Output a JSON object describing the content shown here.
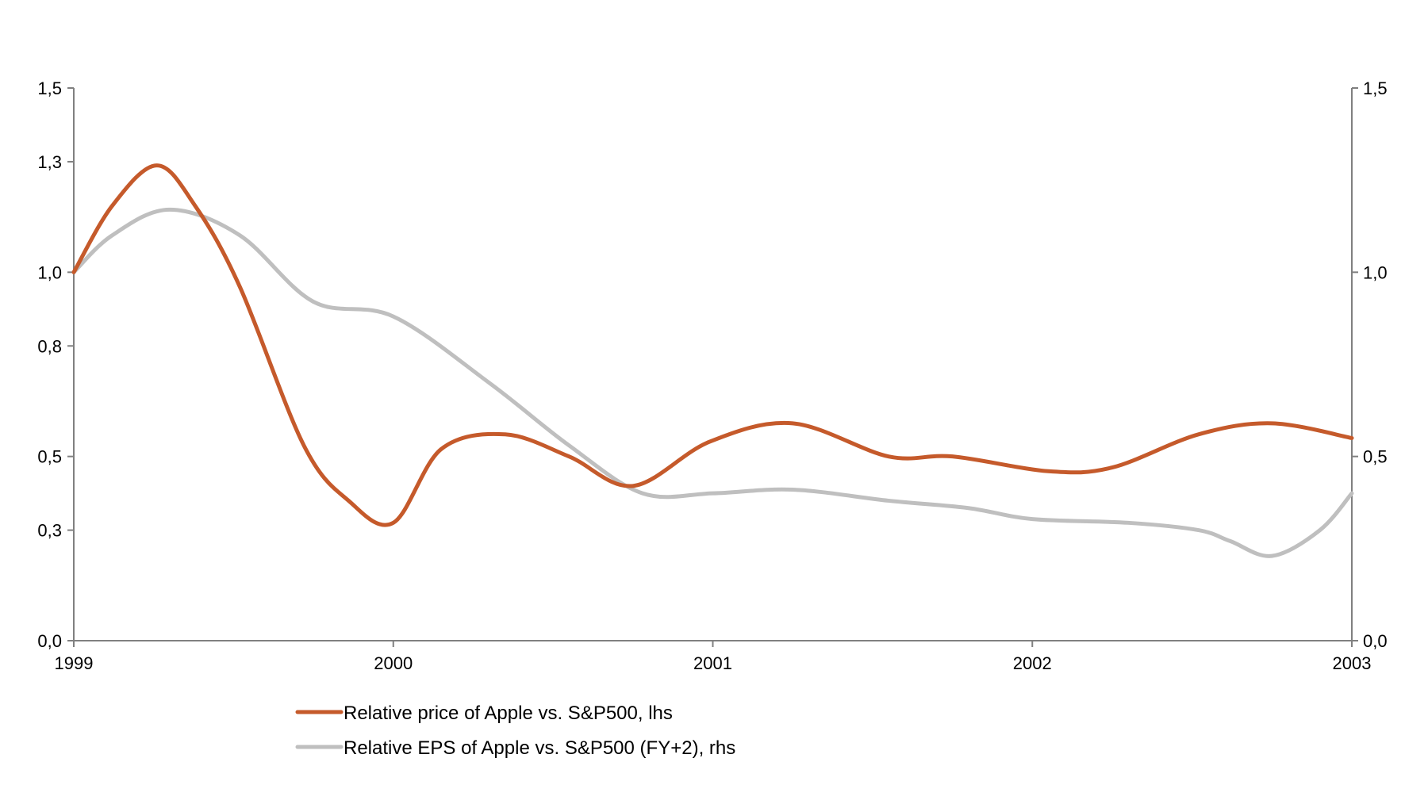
{
  "chart_data": {
    "type": "line",
    "title": "",
    "x_ticks": [
      "1999",
      "2000",
      "2001",
      "2002",
      "2003"
    ],
    "x_range": [
      1999,
      2003
    ],
    "y_left": {
      "range": [
        0,
        1.5
      ],
      "ticks": [
        {
          "value": 0.0,
          "label": "0,0"
        },
        {
          "value": 0.3,
          "label": "0,3"
        },
        {
          "value": 0.5,
          "label": "0,5"
        },
        {
          "value": 0.8,
          "label": "0,8"
        },
        {
          "value": 1.0,
          "label": "1,0"
        },
        {
          "value": 1.3,
          "label": "1,3"
        },
        {
          "value": 1.5,
          "label": "1,5"
        }
      ]
    },
    "y_right": {
      "range": [
        0,
        1.5
      ],
      "ticks": [
        {
          "value": 0.0,
          "label": "0,0"
        },
        {
          "value": 0.5,
          "label": "0,5"
        },
        {
          "value": 1.0,
          "label": "1,0"
        },
        {
          "value": 1.5,
          "label": "1,5"
        }
      ]
    },
    "grid": false,
    "legend_position": "bottom",
    "series": [
      {
        "name": "Relative price of Apple vs. S&P500, lhs",
        "axis": "left",
        "color": "#C55A2B",
        "x": [
          1999.0,
          1999.12,
          1999.26,
          1999.38,
          1999.52,
          1999.72,
          1999.86,
          2000.0,
          2000.15,
          2000.35,
          2000.55,
          2000.75,
          2000.99,
          2001.25,
          2001.55,
          2001.75,
          2002.05,
          2002.25,
          2002.52,
          2002.75,
          2003.0
        ],
        "values": [
          1.0,
          1.18,
          1.29,
          1.18,
          0.96,
          0.53,
          0.38,
          0.32,
          0.52,
          0.56,
          0.5,
          0.42,
          0.54,
          0.59,
          0.5,
          0.5,
          0.46,
          0.47,
          0.56,
          0.59,
          0.55
        ]
      },
      {
        "name": "Relative EPS of Apple vs. S&P500 (FY+2), rhs",
        "axis": "right",
        "color": "#BFBFBF",
        "x": [
          1999.0,
          1999.12,
          1999.3,
          1999.52,
          1999.75,
          2000.0,
          2000.3,
          2000.55,
          2000.78,
          2001.0,
          2001.25,
          2001.55,
          2001.8,
          2002.0,
          2002.3,
          2002.52,
          2002.62,
          2002.75,
          2002.9,
          2003.0
        ],
        "values": [
          1.0,
          1.1,
          1.17,
          1.1,
          0.92,
          0.88,
          0.7,
          0.53,
          0.4,
          0.4,
          0.41,
          0.38,
          0.36,
          0.33,
          0.32,
          0.3,
          0.27,
          0.23,
          0.3,
          0.4
        ]
      }
    ]
  }
}
